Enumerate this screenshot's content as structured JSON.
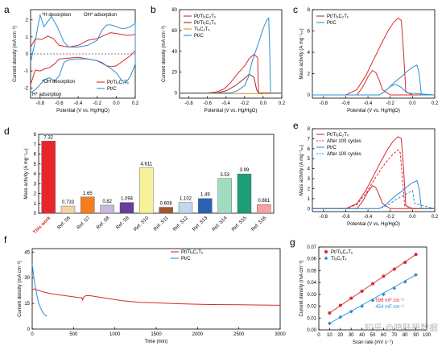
{
  "colors": {
    "red": "#d9292b",
    "blue": "#2c8fd1",
    "orange": "#e98a1b",
    "darkred": "#9e2a2a"
  },
  "chart_data": [
    {
      "panel": "a",
      "type": "line",
      "xlabel": "Potential (V vs. Hg/HgO)",
      "ylabel": "Current density (mA cm⁻²)",
      "xlim": [
        -0.9,
        0.2
      ],
      "ylim": [
        -2.6,
        2.6
      ],
      "xticks": [
        "-0.8",
        "-0.6",
        "-0.4",
        "-0.2",
        "0.0",
        "0.2"
      ],
      "yticks": [
        "-2",
        "-1",
        "0",
        "1",
        "2"
      ],
      "annotations": [
        "*H desorption",
        "OH* adsorption",
        "*OH desorption",
        "H* adsorption"
      ],
      "series": [
        {
          "name": "Pt/Ti₃C₂Tₓ",
          "color": "#d9292b",
          "x": [
            -0.9,
            -0.85,
            -0.78,
            -0.72,
            -0.66,
            -0.6,
            -0.5,
            -0.4,
            -0.3,
            -0.2,
            -0.12,
            -0.06,
            0.0,
            0.05,
            0.1,
            0.15,
            0.2,
            0.2,
            0.15,
            0.1,
            0.05,
            0.0,
            -0.05,
            -0.1,
            -0.15,
            -0.2,
            -0.3,
            -0.4,
            -0.5,
            -0.6,
            -0.65,
            -0.7,
            -0.76,
            -0.8,
            -0.85,
            -0.9
          ],
          "y": [
            0.4,
            0.9,
            0.85,
            1.05,
            0.9,
            0.5,
            0.4,
            0.5,
            0.8,
            0.9,
            1.1,
            1.25,
            1.2,
            1.15,
            1.1,
            1.1,
            1.15,
            0.2,
            -0.1,
            -0.3,
            -0.5,
            -0.7,
            -0.75,
            -0.7,
            -0.55,
            -0.4,
            -0.3,
            -0.2,
            -0.25,
            -0.3,
            -0.6,
            -0.8,
            -0.9,
            -1.0,
            -0.95,
            -1.8
          ]
        },
        {
          "name": "Pt/C",
          "color": "#2c8fd1",
          "x": [
            -0.9,
            -0.85,
            -0.8,
            -0.76,
            -0.72,
            -0.68,
            -0.62,
            -0.55,
            -0.5,
            -0.4,
            -0.3,
            -0.2,
            -0.15,
            -0.1,
            -0.05,
            0.0,
            0.05,
            0.1,
            0.15,
            0.2,
            0.2,
            0.15,
            0.1,
            0.05,
            0.0,
            -0.05,
            -0.1,
            -0.15,
            -0.2,
            -0.3,
            -0.4,
            -0.5,
            -0.55,
            -0.6,
            -0.65,
            -0.7,
            -0.75,
            -0.8,
            -0.85,
            -0.9
          ],
          "y": [
            -0.5,
            0.8,
            2.3,
            1.6,
            1.9,
            2.2,
            1.6,
            0.7,
            0.4,
            0.4,
            0.5,
            0.8,
            1.4,
            1.7,
            1.7,
            1.6,
            1.5,
            1.5,
            1.6,
            1.8,
            -0.6,
            -1.3,
            -1.7,
            -1.5,
            -1.1,
            -0.9,
            -0.7,
            -0.5,
            -0.4,
            -0.3,
            -0.3,
            -0.35,
            -0.5,
            -1.3,
            -1.6,
            -1.4,
            -1.5,
            -1.8,
            -2.1,
            -2.3
          ]
        }
      ],
      "legend": "bottom-right"
    },
    {
      "panel": "b",
      "type": "line",
      "xlabel": "Potential (V vs. Hg/HgO)",
      "ylabel": "Current density (mA cm⁻²)",
      "xlim": [
        -0.9,
        0.2
      ],
      "ylim": [
        -5,
        80
      ],
      "xticks": [
        "-0.8",
        "-0.6",
        "-0.4",
        "-0.2",
        "0.0",
        "0.2"
      ],
      "yticks": [
        "0",
        "20",
        "40",
        "60",
        "80"
      ],
      "series": [
        {
          "name": "Pt/Ti₃C₂Tₓ",
          "color": "#d9292b",
          "x": [
            -0.9,
            -0.6,
            -0.5,
            -0.42,
            -0.35,
            -0.28,
            -0.2,
            -0.15,
            -0.1,
            -0.06,
            -0.05,
            -0.02,
            0.0,
            0.2
          ],
          "y": [
            0,
            0,
            1,
            4,
            10,
            18,
            26,
            33,
            37,
            34,
            0,
            -1,
            0,
            0
          ]
        },
        {
          "name": "Pt/Ti₃C₂Tₓ",
          "color": "#9e2a2a",
          "x": [
            -0.9,
            -0.5,
            -0.4,
            -0.3,
            -0.2,
            -0.15,
            -0.1,
            -0.07,
            -0.05,
            0.2
          ],
          "y": [
            0,
            0,
            2,
            7,
            14,
            18,
            15,
            3,
            0,
            0
          ]
        },
        {
          "name": "Ti₃C₂Tₓ",
          "color": "#e98a1b",
          "x": [
            -0.9,
            0.2
          ],
          "y": [
            -0.5,
            -0.5
          ]
        },
        {
          "name": "Pt/C",
          "color": "#2c8fd1",
          "x": [
            -0.9,
            -0.35,
            -0.28,
            -0.2,
            -0.16,
            -0.12,
            -0.05,
            0.0,
            0.04,
            0.06,
            0.07,
            0.08,
            0.2
          ],
          "y": [
            0,
            0,
            2,
            7,
            15,
            30,
            48,
            62,
            70,
            72,
            40,
            0,
            0
          ]
        }
      ],
      "legend": "top-left"
    },
    {
      "panel": "c",
      "type": "line",
      "xlabel": "Potential (V vs. Hg/HgO)",
      "ylabel": "Mass activity (A mg⁻¹ₚₜ)",
      "xlim": [
        -0.9,
        0.2
      ],
      "ylim": [
        -0.3,
        8
      ],
      "xticks": [
        "-0.8",
        "-0.6",
        "-0.4",
        "-0.2",
        "0.0",
        "0.2"
      ],
      "yticks": [
        "0",
        "2",
        "4",
        "6",
        "8"
      ],
      "series": [
        {
          "name": "Pt/Ti₃C₂Tₓ",
          "color": "#d9292b",
          "x": [
            -0.9,
            -0.6,
            -0.5,
            -0.42,
            -0.35,
            -0.28,
            -0.22,
            -0.17,
            -0.13,
            -0.1,
            -0.08,
            -0.06,
            0.0,
            0.2
          ],
          "y": [
            0,
            0,
            0.5,
            1.8,
            3.3,
            4.8,
            6.0,
            6.8,
            7.2,
            7.0,
            4.0,
            0.3,
            0,
            0
          ]
        },
        {
          "name": "",
          "color": "#d9292b",
          "x": [
            -0.9,
            -0.5,
            -0.45,
            -0.4,
            -0.36,
            -0.33,
            -0.3,
            -0.27,
            -0.2,
            0.2
          ],
          "y": [
            0,
            0,
            0.7,
            1.7,
            2.3,
            2.1,
            1.4,
            0.5,
            0,
            0
          ]
        },
        {
          "name": "Pt/C",
          "color": "#2c8fd1",
          "x": [
            -0.9,
            -0.3,
            -0.25,
            -0.2,
            -0.15,
            -0.1,
            -0.05,
            0.0,
            0.04,
            0.06,
            0.08,
            0.2
          ],
          "y": [
            0,
            0,
            0.3,
            0.8,
            1.3,
            1.7,
            2.2,
            2.6,
            2.8,
            2.0,
            0,
            0
          ]
        },
        {
          "name": "",
          "color": "#2c8fd1",
          "x": [
            -0.9,
            -0.3,
            -0.25,
            -0.2,
            -0.15,
            -0.1,
            -0.05,
            0.2
          ],
          "y": [
            0,
            0,
            0.3,
            0.8,
            1.0,
            0.7,
            0.2,
            0
          ]
        }
      ],
      "legend": "top-left"
    },
    {
      "panel": "d",
      "type": "bar",
      "xlabel": "",
      "ylabel": "Mass activity (A mg⁻¹ₚₜ)",
      "ylim": [
        0,
        8
      ],
      "yticks": [
        "0",
        "1",
        "2",
        "3",
        "4",
        "5",
        "6",
        "7",
        "8"
      ],
      "categories": [
        "This work",
        "Ref. S6",
        "Ref. S7",
        "Ref. S8",
        "Ref. S9",
        "Ref. S10",
        "Ref. S11",
        "Ref. S12",
        "Ref. S13",
        "Ref. S14",
        "Ref. S15",
        "Ref. S16"
      ],
      "values": [
        7.32,
        0.733,
        1.65,
        0.82,
        1.094,
        4.611,
        0.608,
        1.102,
        1.49,
        3.53,
        3.99,
        0.881
      ],
      "value_labels": [
        "7.32",
        "0.733",
        "1.65",
        "0.82",
        "1.094",
        "4.611",
        "0.608",
        "1.102",
        "1.49",
        "3.53",
        "3.99",
        "0.881"
      ],
      "bar_colors": [
        "#e8262a",
        "#f3d1a2",
        "#f57d1f",
        "#c9b8de",
        "#6a3d9a",
        "#f6f29b",
        "#a2582a",
        "#c2d6ee",
        "#2a62b2",
        "#9fdcc0",
        "#1d9e76",
        "#f7a0a0"
      ]
    },
    {
      "panel": "e",
      "type": "line",
      "xlabel": "Potential (V vs. Hg/HgO)",
      "ylabel": "Mass activity (A mg⁻¹ₚₜ)",
      "xlim": [
        -0.9,
        0.2
      ],
      "ylim": [
        -0.3,
        8
      ],
      "xticks": [
        "-0.8",
        "-0.6",
        "-0.4",
        "-0.2",
        "0.0",
        "0.2"
      ],
      "yticks": [
        "0",
        "1",
        "2",
        "3",
        "4",
        "5",
        "6",
        "7",
        "8"
      ],
      "legend_entries": [
        "Pt/Ti₃C₂Tₓ",
        "After 100 cycles",
        "Pt/C",
        "After 100 cycles"
      ],
      "series": [
        {
          "name": "Pt/Ti₃C₂Tₓ",
          "color": "#d9292b",
          "dash": false,
          "x": [
            -0.9,
            -0.6,
            -0.5,
            -0.42,
            -0.35,
            -0.28,
            -0.22,
            -0.17,
            -0.13,
            -0.1,
            -0.08,
            -0.06,
            0.0,
            0.2
          ],
          "y": [
            0,
            0,
            0.5,
            1.8,
            3.3,
            4.8,
            6.0,
            6.8,
            7.2,
            7.0,
            4.0,
            0.3,
            0,
            0
          ]
        },
        {
          "name": "After 100 cycles",
          "color": "#d9292b",
          "dash": true,
          "x": [
            -0.9,
            -0.6,
            -0.5,
            -0.42,
            -0.35,
            -0.28,
            -0.22,
            -0.17,
            -0.13,
            -0.11,
            -0.09,
            -0.07,
            0.0,
            0.2
          ],
          "y": [
            0,
            0,
            0.4,
            1.5,
            2.8,
            4.0,
            4.9,
            5.5,
            5.9,
            5.6,
            3.0,
            0.3,
            0,
            0
          ]
        },
        {
          "name": "",
          "color": "#d9292b",
          "dash": false,
          "x": [
            -0.9,
            -0.5,
            -0.45,
            -0.4,
            -0.36,
            -0.33,
            -0.3,
            -0.27,
            -0.2,
            0.2
          ],
          "y": [
            0,
            0,
            0.7,
            1.7,
            2.3,
            2.1,
            1.4,
            0.5,
            0,
            0
          ]
        },
        {
          "name": "Pt/C",
          "color": "#2c8fd1",
          "dash": false,
          "x": [
            -0.9,
            -0.3,
            -0.25,
            -0.2,
            -0.15,
            -0.1,
            -0.05,
            0.0,
            0.04,
            0.06,
            0.08,
            0.2
          ],
          "y": [
            0,
            0,
            0.3,
            0.8,
            1.3,
            1.7,
            2.2,
            2.6,
            2.8,
            2.0,
            0,
            0
          ]
        },
        {
          "name": "After 100 cycles",
          "color": "#2c8fd1",
          "dash": true,
          "x": [
            -0.9,
            -0.3,
            -0.25,
            -0.2,
            -0.15,
            -0.1,
            -0.05,
            -0.02,
            0.0,
            0.02,
            0.2
          ],
          "y": [
            0,
            0,
            0.2,
            0.5,
            0.9,
            1.2,
            1.5,
            1.7,
            1.8,
            0.5,
            0
          ]
        }
      ]
    },
    {
      "panel": "f",
      "type": "line",
      "xlabel": "Time (min)",
      "ylabel": "Current density (mA cm⁻²)",
      "xlim": [
        0,
        3000
      ],
      "ylim": [
        0,
        47
      ],
      "xticks": [
        "0",
        "500",
        "1000",
        "1500",
        "2000",
        "2500",
        "3000"
      ],
      "yticks": [
        "0",
        "15",
        "30",
        "45"
      ],
      "series": [
        {
          "name": "Pt/Ti₃C₂Tₓ",
          "color": "#d9292b",
          "x": [
            0,
            30,
            80,
            150,
            250,
            400,
            550,
            600,
            610,
            620,
            650,
            700,
            900,
            1100,
            1300,
            1500,
            1700,
            1900,
            2100,
            2300,
            2500,
            2700,
            2900,
            3000
          ],
          "y": [
            23,
            23.5,
            22.5,
            21.5,
            20.5,
            19.5,
            18.5,
            18.3,
            17,
            18.5,
            19.5,
            19.5,
            18,
            16.5,
            15.6,
            15.3,
            14.9,
            14.6,
            14.4,
            14.3,
            14.2,
            14.1,
            14.0,
            13.9
          ]
        },
        {
          "name": "Pt/C",
          "color": "#2c8fd1",
          "x": [
            0,
            20,
            40,
            60,
            80,
            100,
            120,
            140,
            160,
            180
          ],
          "y": [
            38,
            30,
            24,
            19,
            15,
            12.5,
            10.5,
            9,
            8,
            7.5
          ]
        }
      ],
      "legend": "top-right"
    },
    {
      "panel": "g",
      "type": "scatter",
      "xlabel": "Scan rate (mV s⁻¹)",
      "ylabel": "Current density (mA cm⁻²)",
      "xlim": [
        0,
        100
      ],
      "ylim": [
        0,
        0.07
      ],
      "xticks": [
        "0",
        "10",
        "20",
        "30",
        "40",
        "50",
        "60",
        "70",
        "80",
        "90",
        "100"
      ],
      "yticks": [
        "0.00",
        "0.01",
        "0.02",
        "0.03",
        "0.04",
        "0.05",
        "0.06",
        "0.07"
      ],
      "annotations": [
        "598 mF cm⁻²",
        "454 mF cm⁻²"
      ],
      "series": [
        {
          "name": "Pt/Ti₃C₂Tₓ",
          "color": "#d9292b",
          "marker": "circle",
          "x": [
            10,
            20,
            30,
            40,
            50,
            60,
            70,
            80,
            90
          ],
          "y": [
            0.0143,
            0.0207,
            0.0268,
            0.0327,
            0.039,
            0.0453,
            0.0513,
            0.0571,
            0.0637
          ]
        },
        {
          "name": "Ti₃C₂Tₓ",
          "color": "#2c8fd1",
          "marker": "diamond",
          "x": [
            10,
            20,
            30,
            40,
            50,
            60,
            70,
            80,
            90
          ],
          "y": [
            0.0055,
            0.0108,
            0.0155,
            0.02,
            0.025,
            0.03,
            0.0352,
            0.0406,
            0.0465
          ]
        }
      ],
      "legend": "top-left"
    }
  ],
  "watermark": "知乎 @暗胚册数据"
}
